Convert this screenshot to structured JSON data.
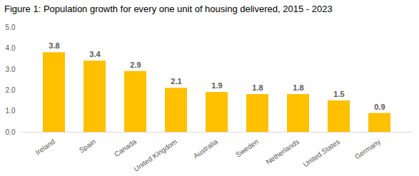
{
  "chart_data": {
    "type": "bar",
    "title": "Figure 1: Population growth for every one unit of housing delivered, 2015 - 2023",
    "categories": [
      "Ireland",
      "Spain",
      "Canada",
      "United Kingdom",
      "Australia",
      "Sweden",
      "Netherlands",
      "United States",
      "Germany"
    ],
    "values": [
      3.8,
      3.4,
      2.9,
      2.1,
      1.9,
      1.8,
      1.8,
      1.5,
      0.9
    ],
    "color": "#ffc000",
    "ylim": [
      0,
      5
    ],
    "yticks": [
      0,
      1,
      2,
      3,
      4,
      5
    ],
    "grid": false,
    "data_labels": true
  }
}
